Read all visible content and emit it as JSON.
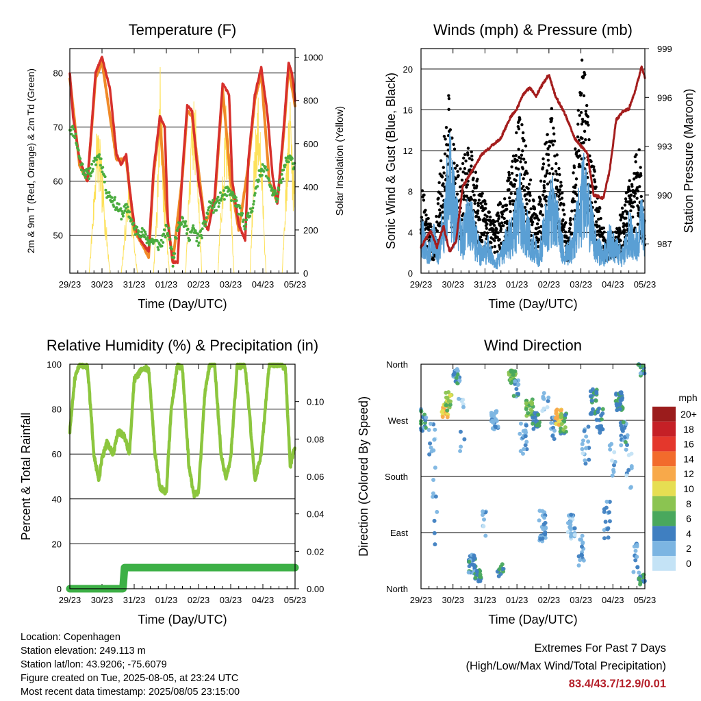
{
  "info": {
    "location": "Location: Copenhagen",
    "elevation": "Station elevation: 249.113 m",
    "latlon": "Station lat/lon: 43.9206; -75.6079",
    "created": "Figure created on Tue, 2025-08-05, at 23:24 UTC",
    "recent": "Most recent data timestamp: 2025/08/05 23:15:00",
    "extremes_title": "Extremes For Past 7 Days",
    "extremes_sub": "(High/Low/Max Wind/Total Precipitation)",
    "extremes_values": "83.4/43.7/12.9/0.01"
  },
  "colors": {
    "temp": "#d7302c",
    "temp9": "#f08a28",
    "dew": "#4aac3f",
    "solar": "#fde15a",
    "wind": "#5a9fd4",
    "gust": "#000000",
    "pressure": "#a41d1d",
    "rh": "#8cc63e",
    "precip": "#3db046",
    "extremes": "#b5202a"
  },
  "chart_data": [
    {
      "type": "line",
      "title": "Temperature (F)",
      "xlabel": "Time (Day/UTC)",
      "ylabel": "2m & 9m T (Red, Orange) & 2m Td (Green)",
      "ylabel_right": "Solar Insolation (Yellow)",
      "x_ticks": [
        "29/23",
        "30/23",
        "31/23",
        "01/23",
        "02/23",
        "03/23",
        "04/23",
        "05/23"
      ],
      "ylim": [
        43,
        84.5
      ],
      "y_ticks": [
        50,
        60,
        70,
        80
      ],
      "ylim_right": [
        0,
        1040
      ],
      "y_ticks_right": [
        0,
        200,
        400,
        600,
        800,
        1000
      ],
      "grid": "horizontal",
      "series": [
        {
          "name": "2m T",
          "x": [
            0,
            0.1,
            0.3,
            0.55,
            0.8,
            1.0,
            1.25,
            1.45,
            1.6,
            1.75,
            1.85,
            2.0,
            2.2,
            2.45,
            2.6,
            2.8,
            2.95,
            3.05,
            3.2,
            3.35,
            3.5,
            3.65,
            3.8,
            4.0,
            4.2,
            4.3,
            4.5,
            4.75,
            4.95,
            5.05,
            5.25,
            5.45,
            5.55,
            5.75,
            5.95,
            6.15,
            6.3,
            6.45,
            6.65,
            6.8,
            6.9,
            6.95,
            7.0
          ],
          "y": [
            80,
            72,
            64,
            60,
            80,
            83,
            77,
            65,
            63,
            65,
            59,
            52,
            49,
            47,
            62,
            72,
            70,
            52,
            45,
            45,
            62,
            74,
            73,
            60,
            52,
            51,
            57,
            78,
            76,
            60,
            52,
            49,
            64,
            76,
            81,
            72,
            61,
            56,
            70,
            82,
            80,
            78,
            75
          ]
        },
        {
          "name": "9m T",
          "x": [
            0,
            0.3,
            0.55,
            0.8,
            1.0,
            1.45,
            1.75,
            2.0,
            2.45,
            2.6,
            2.8,
            3.0,
            3.2,
            3.5,
            3.65,
            3.8,
            4.2,
            4.5,
            4.75,
            5.0,
            5.25,
            5.55,
            5.75,
            5.95,
            6.2,
            6.45,
            6.65,
            6.8,
            7.0
          ],
          "y": [
            79,
            63,
            60,
            79,
            82,
            64,
            64,
            51,
            46,
            61,
            71,
            55,
            45,
            61,
            73,
            72,
            52,
            56,
            77,
            60,
            51,
            63,
            75,
            80,
            60,
            56,
            69,
            81,
            74
          ]
        },
        {
          "name": "2m Td",
          "x": [
            0,
            0.15,
            0.35,
            0.55,
            0.75,
            0.9,
            1.0,
            1.15,
            1.4,
            1.6,
            1.8,
            2.0,
            2.15,
            2.45,
            2.6,
            2.8,
            3.0,
            3.1,
            3.2,
            3.35,
            3.5,
            3.7,
            3.85,
            4.0,
            4.2,
            4.35,
            4.5,
            4.7,
            4.9,
            5.1,
            5.3,
            5.45,
            5.6,
            5.75,
            5.9,
            6.1,
            6.3,
            6.45,
            6.6,
            6.75,
            6.85,
            7.0
          ],
          "y": [
            70,
            69,
            63,
            61,
            63,
            65,
            63,
            58,
            56,
            54,
            55,
            51,
            51,
            49,
            49,
            48,
            51,
            50,
            45,
            52,
            53,
            50,
            51,
            49,
            52,
            56,
            55,
            57,
            58,
            57,
            54,
            52,
            54,
            57,
            62,
            62,
            58,
            57,
            61,
            64,
            64,
            63
          ]
        },
        {
          "name": "Solar",
          "x": [
            0.6,
            0.75,
            0.85,
            0.95,
            1.1,
            1.25,
            1.6,
            1.75,
            1.85,
            1.95,
            2.1,
            2.6,
            2.72,
            2.8,
            2.85,
            2.92,
            3.1,
            3.6,
            3.75,
            3.85,
            3.95,
            4.1,
            4.6,
            4.75,
            4.85,
            4.95,
            5.1,
            5.6,
            5.75,
            5.85,
            5.95,
            6.1,
            6.6,
            6.75,
            6.85,
            6.95
          ],
          "y": [
            0,
            400,
            750,
            600,
            300,
            0,
            0,
            300,
            500,
            250,
            0,
            0,
            400,
            1000,
            850,
            400,
            0,
            0,
            600,
            850,
            700,
            0,
            0,
            500,
            800,
            650,
            0,
            0,
            700,
            850,
            600,
            0,
            0,
            600,
            850,
            500
          ]
        }
      ]
    },
    {
      "type": "line",
      "title": "Winds (mph) & Pressure (mb)",
      "xlabel": "Time (Day/UTC)",
      "ylabel": "Sonic Wind & Gust (Blue, Black)",
      "ylabel_right": "Station Pressure (Maroon)",
      "x_ticks": [
        "29/23",
        "30/23",
        "31/23",
        "01/23",
        "02/23",
        "03/23",
        "04/23",
        "05/23"
      ],
      "ylim": [
        0,
        22
      ],
      "y_ticks": [
        0,
        4,
        8,
        12,
        16,
        20
      ],
      "ylim_right": [
        985.2,
        999
      ],
      "y_ticks_right": [
        987,
        990,
        993,
        996,
        999
      ],
      "grid": "horizontal",
      "series": [
        {
          "name": "Sonic Wind",
          "x": [
            0,
            0.2,
            0.4,
            0.55,
            0.7,
            0.9,
            1.1,
            1.3,
            1.5,
            1.7,
            1.9,
            2.1,
            2.3,
            2.5,
            2.7,
            2.9,
            3.1,
            3.3,
            3.5,
            3.7,
            3.9,
            4.1,
            4.3,
            4.5,
            4.7,
            4.9,
            5.1,
            5.3,
            5.5,
            5.7,
            5.9,
            6.1,
            6.3,
            6.5,
            6.7,
            6.9,
            7.0
          ],
          "y": [
            5,
            2,
            4,
            2,
            6,
            11,
            6,
            4,
            7,
            4,
            2,
            3,
            1,
            2,
            4,
            5,
            8,
            5,
            3,
            2,
            6,
            8,
            5,
            2,
            3,
            6,
            10,
            6,
            3,
            2,
            4,
            3,
            2,
            5,
            3,
            6,
            4
          ]
        },
        {
          "name": "Gust",
          "x": [
            0.05,
            0.4,
            0.75,
            0.85,
            0.95,
            1.2,
            1.5,
            1.8,
            2.2,
            2.6,
            3.0,
            3.1,
            3.3,
            3.6,
            3.9,
            4.1,
            4.3,
            4.6,
            4.9,
            5.05,
            5.2,
            5.5,
            5.8,
            6.2,
            6.5,
            6.8,
            6.95
          ],
          "y": [
            8,
            3,
            14,
            17,
            13,
            9,
            12,
            8,
            5,
            7,
            13,
            17,
            11,
            5,
            12,
            15,
            10,
            3,
            14,
            20,
            16,
            7,
            3,
            5,
            8,
            12,
            6
          ]
        },
        {
          "name": "Pressure",
          "x": [
            0,
            0.3,
            0.5,
            0.7,
            0.9,
            1.1,
            1.3,
            1.6,
            1.9,
            2.2,
            2.5,
            2.8,
            3.0,
            3.2,
            3.4,
            3.6,
            3.8,
            4.0,
            4.2,
            4.5,
            4.8,
            5.0,
            5.2,
            5.4,
            5.7,
            5.9,
            6.1,
            6.3,
            6.5,
            6.7,
            6.9,
            7.0
          ],
          "y": [
            986.8,
            987.8,
            986.8,
            988.1,
            986.5,
            987.2,
            990.5,
            991.5,
            992.5,
            993.0,
            993.5,
            994.8,
            995.3,
            996.2,
            996.6,
            996.1,
            996.8,
            997.4,
            996.1,
            995.0,
            993.5,
            993.0,
            992.6,
            990.0,
            989.8,
            991.5,
            994.6,
            995.1,
            995.3,
            996.4,
            997.9,
            997.2
          ]
        }
      ]
    },
    {
      "type": "line",
      "title": "Relative Humidity (%) & Precipitation (in)",
      "xlabel": "Time (Day/UTC)",
      "ylabel": "Percent & Total Rainfall",
      "x_ticks": [
        "29/23",
        "30/23",
        "31/23",
        "01/23",
        "02/23",
        "03/23",
        "04/23",
        "05/23"
      ],
      "ylim": [
        0,
        100
      ],
      "y_ticks": [
        0,
        20,
        40,
        60,
        80,
        100
      ],
      "ylim_right": [
        0,
        0.12
      ],
      "y_ticks_right": [
        "0.00",
        "0.02",
        "0.04",
        "0.06",
        "0.08",
        "0.10"
      ],
      "grid": "horizontal",
      "series": [
        {
          "name": "RH",
          "x": [
            0,
            0.15,
            0.3,
            0.55,
            0.75,
            0.9,
            1.0,
            1.15,
            1.35,
            1.5,
            1.7,
            1.85,
            2.0,
            2.25,
            2.45,
            2.65,
            2.8,
            3.0,
            3.15,
            3.35,
            3.5,
            3.7,
            3.85,
            4.0,
            4.2,
            4.35,
            4.5,
            4.7,
            4.85,
            5.0,
            5.2,
            5.45,
            5.6,
            5.75,
            5.95,
            6.2,
            6.4,
            6.55,
            6.7,
            6.85,
            7.0
          ],
          "y": [
            70,
            93,
            100,
            99,
            60,
            48,
            58,
            65,
            60,
            70,
            68,
            60,
            93,
            98,
            98,
            60,
            45,
            43,
            80,
            100,
            98,
            55,
            42,
            43,
            88,
            100,
            100,
            60,
            49,
            58,
            99,
            99,
            75,
            48,
            60,
            100,
            100,
            100,
            98,
            54,
            64
          ]
        },
        {
          "name": "Precipitation",
          "x": [
            0,
            1.65,
            1.7,
            7.0
          ],
          "y": [
            0.0,
            0.0,
            0.0113,
            0.0113
          ]
        }
      ]
    },
    {
      "type": "scatter",
      "title": "Wind Direction",
      "xlabel": "Time (Day/UTC)",
      "ylabel": "Direction (Colored By Speed)",
      "x_ticks": [
        "29/23",
        "30/23",
        "31/23",
        "01/23",
        "02/23",
        "03/23",
        "04/23",
        "05/23"
      ],
      "y_ticks": [
        "North",
        "East",
        "South",
        "West",
        "North"
      ],
      "legend_title": "mph",
      "legend": [
        "20+",
        "18",
        "16",
        "14",
        "12",
        "10",
        "8",
        "6",
        "4",
        "2",
        "0"
      ],
      "legend_colors": [
        "#9b1c1c",
        "#c52026",
        "#e4372c",
        "#f26b2c",
        "#f8a94a",
        "#e6de52",
        "#8bc451",
        "#49a85d",
        "#3f7fc1",
        "#7cb5e2",
        "#c4e3f6"
      ],
      "grid": "horizontal",
      "clusters": [
        {
          "x": 0.05,
          "y": 270,
          "n": 18,
          "spread": 40,
          "speed": 4
        },
        {
          "x": 0.35,
          "y": 230,
          "n": 12,
          "spread": 80,
          "speed": 2
        },
        {
          "x": 0.4,
          "y": 130,
          "n": 8,
          "spread": 120,
          "speed": 2
        },
        {
          "x": 0.75,
          "y": 285,
          "n": 25,
          "spread": 20,
          "speed": 11
        },
        {
          "x": 0.85,
          "y": 300,
          "n": 20,
          "spread": 30,
          "speed": 8
        },
        {
          "x": 1.1,
          "y": 340,
          "n": 22,
          "spread": 25,
          "speed": 4
        },
        {
          "x": 1.25,
          "y": 250,
          "n": 10,
          "spread": 120,
          "speed": 2
        },
        {
          "x": 1.6,
          "y": 40,
          "n": 30,
          "spread": 30,
          "speed": 4
        },
        {
          "x": 1.8,
          "y": 20,
          "n": 20,
          "spread": 20,
          "speed": 5
        },
        {
          "x": 2.0,
          "y": 100,
          "n": 8,
          "spread": 50,
          "speed": 2
        },
        {
          "x": 2.3,
          "y": 270,
          "n": 25,
          "spread": 30,
          "speed": 3
        },
        {
          "x": 2.5,
          "y": 30,
          "n": 12,
          "spread": 20,
          "speed": 5
        },
        {
          "x": 2.85,
          "y": 340,
          "n": 30,
          "spread": 20,
          "speed": 7
        },
        {
          "x": 3.0,
          "y": 320,
          "n": 12,
          "spread": 30,
          "speed": 4
        },
        {
          "x": 3.2,
          "y": 240,
          "n": 20,
          "spread": 50,
          "speed": 3
        },
        {
          "x": 3.4,
          "y": 290,
          "n": 25,
          "spread": 30,
          "speed": 7
        },
        {
          "x": 3.6,
          "y": 270,
          "n": 20,
          "spread": 30,
          "speed": 5
        },
        {
          "x": 3.8,
          "y": 100,
          "n": 25,
          "spread": 50,
          "speed": 3
        },
        {
          "x": 3.9,
          "y": 300,
          "n": 10,
          "spread": 30,
          "speed": 2
        },
        {
          "x": 4.1,
          "y": 260,
          "n": 12,
          "spread": 40,
          "speed": 3
        },
        {
          "x": 4.3,
          "y": 275,
          "n": 25,
          "spread": 25,
          "speed": 11
        },
        {
          "x": 4.45,
          "y": 265,
          "n": 20,
          "spread": 35,
          "speed": 6
        },
        {
          "x": 4.7,
          "y": 100,
          "n": 25,
          "spread": 40,
          "speed": 2
        },
        {
          "x": 5.0,
          "y": 60,
          "n": 15,
          "spread": 50,
          "speed": 3
        },
        {
          "x": 5.15,
          "y": 230,
          "n": 15,
          "spread": 80,
          "speed": 2
        },
        {
          "x": 5.4,
          "y": 300,
          "n": 25,
          "spread": 40,
          "speed": 5
        },
        {
          "x": 5.6,
          "y": 270,
          "n": 20,
          "spread": 40,
          "speed": 4
        },
        {
          "x": 5.8,
          "y": 110,
          "n": 15,
          "spread": 60,
          "speed": 3
        },
        {
          "x": 6.0,
          "y": 210,
          "n": 10,
          "spread": 60,
          "speed": 2
        },
        {
          "x": 6.2,
          "y": 300,
          "n": 30,
          "spread": 30,
          "speed": 5
        },
        {
          "x": 6.35,
          "y": 250,
          "n": 20,
          "spread": 40,
          "speed": 4
        },
        {
          "x": 6.5,
          "y": 200,
          "n": 10,
          "spread": 80,
          "speed": 2
        },
        {
          "x": 6.75,
          "y": 50,
          "n": 15,
          "spread": 50,
          "speed": 3
        },
        {
          "x": 6.9,
          "y": 350,
          "n": 15,
          "spread": 20,
          "speed": 4
        },
        {
          "x": 6.9,
          "y": 15,
          "n": 12,
          "spread": 20,
          "speed": 5
        }
      ]
    }
  ]
}
